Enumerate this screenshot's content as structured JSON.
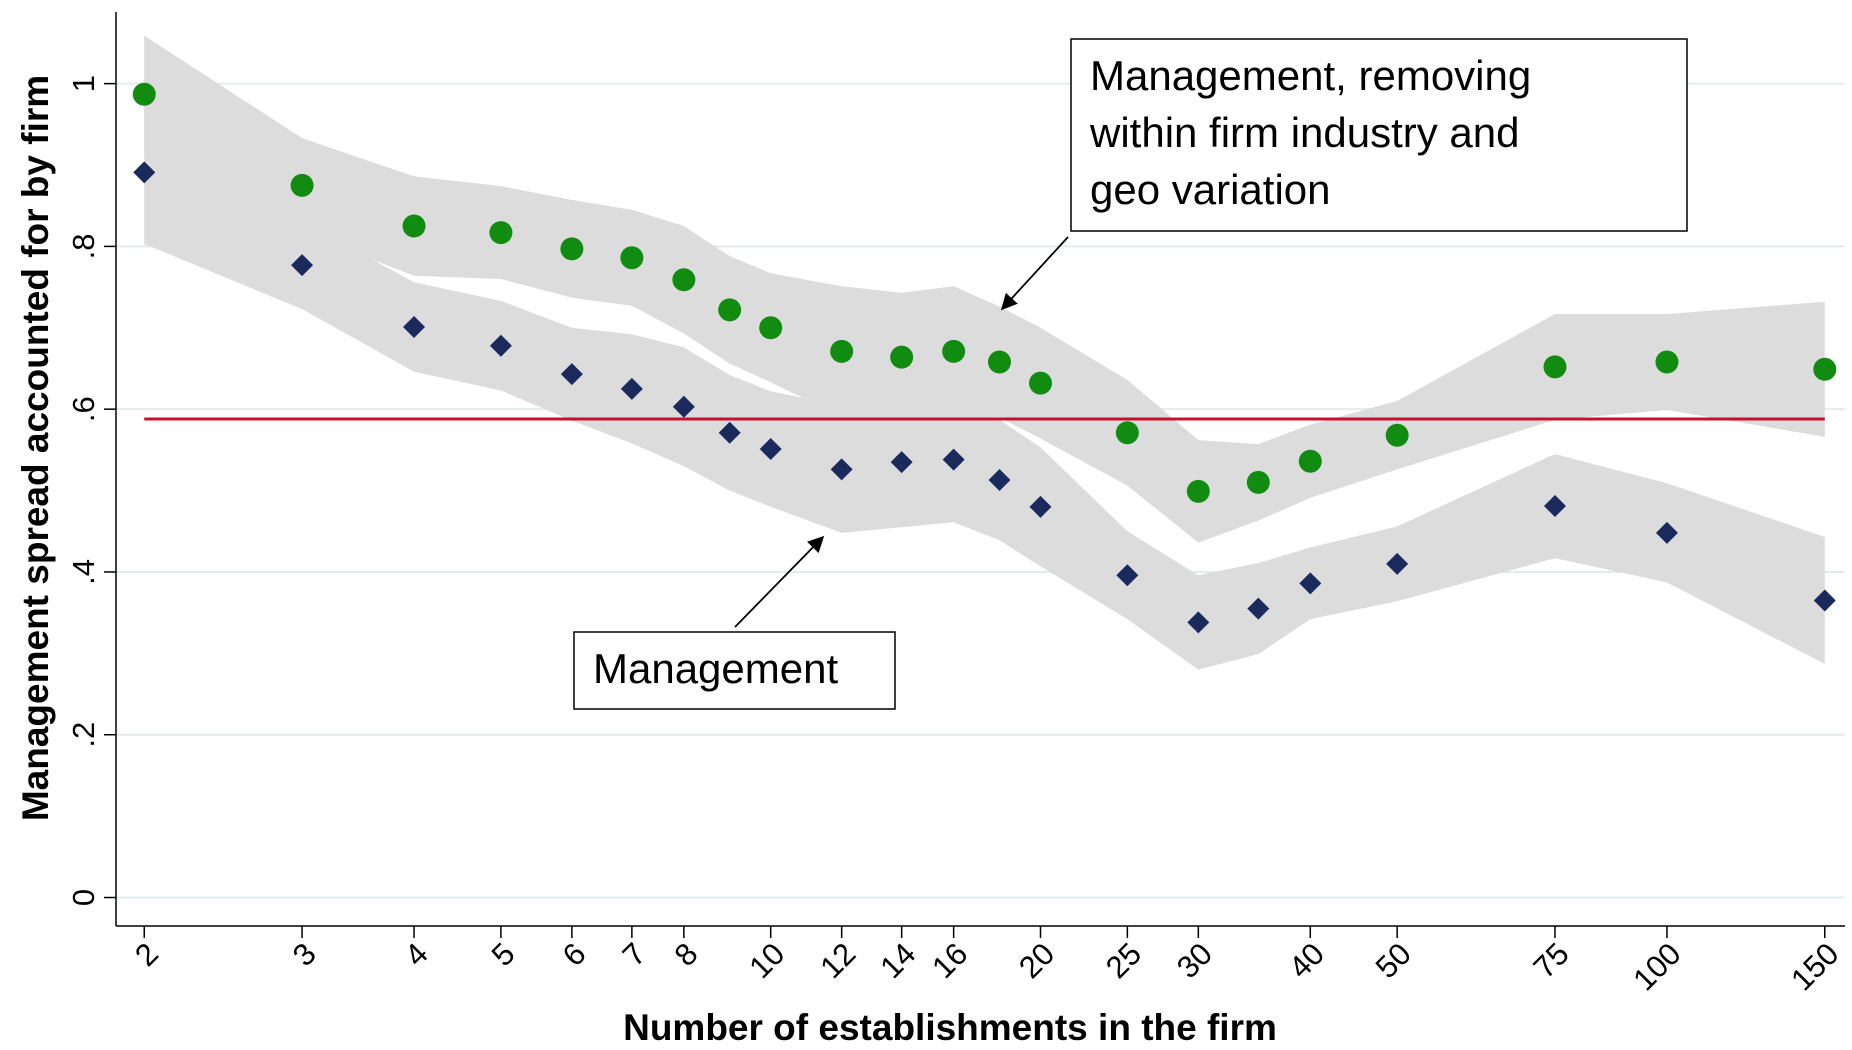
{
  "chart_data": {
    "type": "scatter",
    "x_label": "Number of establishments in the firm",
    "y_label": "Management spread accounted for by firm",
    "x": [
      2,
      3,
      4,
      5,
      6,
      7,
      8,
      9,
      10,
      12,
      14,
      16,
      18,
      20,
      25,
      30,
      35,
      40,
      50,
      75,
      100,
      150
    ],
    "series": [
      {
        "color": "#118c11",
        "marker": "circle",
        "values": [
          0.987,
          0.875,
          0.825,
          0.817,
          0.797,
          0.786,
          0.759,
          0.722,
          0.7,
          0.671,
          0.664,
          0.671,
          0.658,
          0.632,
          0.571,
          0.499,
          0.51,
          0.536,
          0.568,
          0.652,
          0.658,
          0.649
        ],
        "ci_upper": [
          1.059,
          0.933,
          0.886,
          0.874,
          0.857,
          0.845,
          0.825,
          0.788,
          0.767,
          0.751,
          0.743,
          0.751,
          0.726,
          0.7,
          0.636,
          0.562,
          0.557,
          0.581,
          0.61,
          0.717,
          0.717,
          0.732
        ],
        "ci_lower": [
          0.915,
          0.817,
          0.764,
          0.76,
          0.737,
          0.727,
          0.693,
          0.656,
          0.633,
          0.591,
          0.585,
          0.591,
          0.59,
          0.564,
          0.506,
          0.436,
          0.463,
          0.491,
          0.526,
          0.587,
          0.599,
          0.566
        ]
      },
      {
        "color": "#1b2a5c",
        "marker": "diamond",
        "values": [
          0.891,
          0.777,
          0.701,
          0.678,
          0.643,
          0.625,
          0.603,
          0.571,
          0.551,
          0.526,
          0.535,
          0.538,
          0.513,
          0.48,
          0.396,
          0.338,
          0.355,
          0.386,
          0.41,
          0.481,
          0.448,
          0.365
        ],
        "ci_upper": [
          0.979,
          0.831,
          0.756,
          0.733,
          0.7,
          0.692,
          0.676,
          0.642,
          0.622,
          0.604,
          0.615,
          0.615,
          0.587,
          0.553,
          0.45,
          0.396,
          0.411,
          0.43,
          0.456,
          0.545,
          0.509,
          0.443
        ],
        "ci_lower": [
          0.803,
          0.723,
          0.646,
          0.623,
          0.586,
          0.558,
          0.53,
          0.5,
          0.48,
          0.448,
          0.455,
          0.461,
          0.439,
          0.407,
          0.342,
          0.28,
          0.299,
          0.342,
          0.364,
          0.417,
          0.387,
          0.287
        ]
      }
    ],
    "band_color": "#dcdcdc",
    "reference_line": {
      "value": 0.588,
      "color": "#c8102e"
    },
    "annotations": [
      {
        "lines": [
          "Management, removing",
          "within firm industry and",
          "geo variation"
        ]
      },
      {
        "lines": [
          "Management"
        ]
      }
    ],
    "log_x": true,
    "grid": true,
    "xlim": [
      1.86,
      158
    ],
    "ylim": [
      -0.035,
      1.088
    ],
    "xticks": [
      2,
      3,
      4,
      5,
      6,
      7,
      8,
      10,
      12,
      14,
      16,
      20,
      25,
      30,
      40,
      50,
      75,
      100,
      150
    ],
    "yticks": [
      0,
      {
        "value": 0.2,
        "label": ".2"
      },
      {
        "value": 0.4,
        "label": ".4"
      },
      {
        "value": 0.6,
        "label": ".6"
      },
      {
        "value": 0.8,
        "label": ".8"
      },
      1
    ]
  }
}
